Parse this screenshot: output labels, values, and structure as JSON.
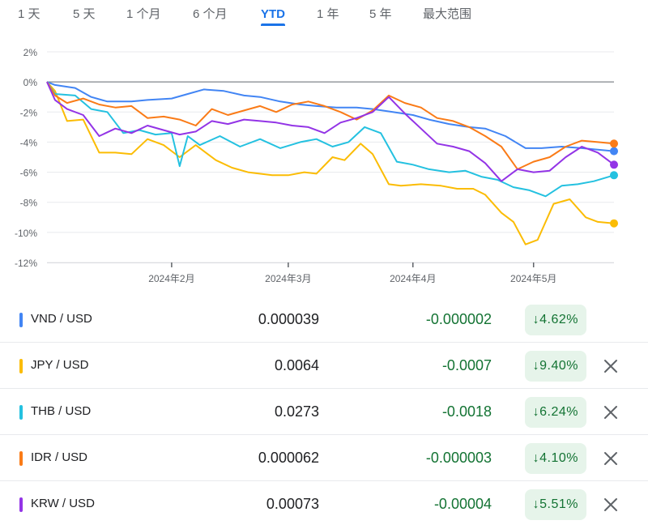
{
  "tabs": [
    {
      "label": "1 天"
    },
    {
      "label": "5 天"
    },
    {
      "label": "1 个月"
    },
    {
      "label": "6 个月"
    },
    {
      "label": "YTD",
      "active": true
    },
    {
      "label": "1 年"
    },
    {
      "label": "5 年"
    },
    {
      "label": "最大范围"
    }
  ],
  "chart_data": {
    "type": "line",
    "ylim": [
      -12,
      2
    ],
    "yticks": [
      2,
      0,
      -2,
      -4,
      -6,
      -8,
      -10,
      -12
    ],
    "ytick_labels": [
      "2%",
      "0%",
      "-2%",
      "-4%",
      "-6%",
      "-8%",
      "-10%",
      "-12%"
    ],
    "xlim": [
      "2024-01-01",
      "2024-05-21"
    ],
    "xticks": [
      "2024-02-01",
      "2024-03-01",
      "2024-04-01",
      "2024-05-01"
    ],
    "xtick_labels": [
      "2024年2月",
      "2024年3月",
      "2024年4月",
      "2024年5月"
    ],
    "baseline": 0,
    "grid": "horizontal",
    "series": [
      {
        "name": "VND / USD",
        "color": "#4285f4",
        "x": [
          "2024-01-01",
          "2024-01-03",
          "2024-01-08",
          "2024-01-12",
          "2024-01-16",
          "2024-01-22",
          "2024-01-26",
          "2024-02-01",
          "2024-02-05",
          "2024-02-09",
          "2024-02-14",
          "2024-02-19",
          "2024-02-23",
          "2024-02-28",
          "2024-03-04",
          "2024-03-08",
          "2024-03-13",
          "2024-03-18",
          "2024-03-22",
          "2024-03-27",
          "2024-04-01",
          "2024-04-05",
          "2024-04-10",
          "2024-04-15",
          "2024-04-19",
          "2024-04-24",
          "2024-04-29",
          "2024-05-03",
          "2024-05-08",
          "2024-05-13",
          "2024-05-17",
          "2024-05-21"
        ],
        "y": [
          0,
          -0.2,
          -0.4,
          -1.0,
          -1.3,
          -1.3,
          -1.2,
          -1.1,
          -0.8,
          -0.5,
          -0.6,
          -0.9,
          -1.0,
          -1.3,
          -1.5,
          -1.6,
          -1.7,
          -1.7,
          -1.8,
          -2.0,
          -2.2,
          -2.5,
          -2.8,
          -3.0,
          -3.1,
          -3.6,
          -4.4,
          -4.4,
          -4.3,
          -4.4,
          -4.5,
          -4.6
        ]
      },
      {
        "name": "JPY / USD",
        "color": "#fbbc04",
        "x": [
          "2024-01-01",
          "2024-01-03",
          "2024-01-06",
          "2024-01-10",
          "2024-01-14",
          "2024-01-18",
          "2024-01-22",
          "2024-01-26",
          "2024-01-30",
          "2024-02-03",
          "2024-02-07",
          "2024-02-12",
          "2024-02-16",
          "2024-02-20",
          "2024-02-26",
          "2024-03-01",
          "2024-03-05",
          "2024-03-08",
          "2024-03-12",
          "2024-03-15",
          "2024-03-19",
          "2024-03-22",
          "2024-03-26",
          "2024-03-29",
          "2024-04-03",
          "2024-04-08",
          "2024-04-12",
          "2024-04-16",
          "2024-04-19",
          "2024-04-23",
          "2024-04-26",
          "2024-04-29",
          "2024-05-02",
          "2024-05-06",
          "2024-05-10",
          "2024-05-14",
          "2024-05-17",
          "2024-05-21"
        ],
        "y": [
          0,
          -0.6,
          -2.6,
          -2.5,
          -4.7,
          -4.7,
          -4.8,
          -3.8,
          -4.2,
          -5.0,
          -4.2,
          -5.2,
          -5.7,
          -6.0,
          -6.2,
          -6.2,
          -6.0,
          -6.1,
          -5.0,
          -5.2,
          -4.1,
          -4.8,
          -6.8,
          -6.9,
          -6.8,
          -6.9,
          -7.1,
          -7.1,
          -7.5,
          -8.7,
          -9.3,
          -10.8,
          -10.5,
          -8.1,
          -7.8,
          -9.0,
          -9.3,
          -9.4
        ]
      },
      {
        "name": "THB / USD",
        "color": "#24c1e0",
        "x": [
          "2024-01-01",
          "2024-01-03",
          "2024-01-08",
          "2024-01-12",
          "2024-01-16",
          "2024-01-20",
          "2024-01-24",
          "2024-01-28",
          "2024-02-01",
          "2024-02-03",
          "2024-02-05",
          "2024-02-08",
          "2024-02-13",
          "2024-02-18",
          "2024-02-23",
          "2024-02-28",
          "2024-03-04",
          "2024-03-08",
          "2024-03-12",
          "2024-03-16",
          "2024-03-20",
          "2024-03-24",
          "2024-03-28",
          "2024-04-01",
          "2024-04-05",
          "2024-04-10",
          "2024-04-14",
          "2024-04-18",
          "2024-04-22",
          "2024-04-26",
          "2024-04-30",
          "2024-05-04",
          "2024-05-08",
          "2024-05-12",
          "2024-05-16",
          "2024-05-21"
        ],
        "y": [
          0,
          -0.8,
          -0.9,
          -1.8,
          -2.0,
          -3.4,
          -3.2,
          -3.5,
          -3.4,
          -5.6,
          -3.6,
          -4.2,
          -3.6,
          -4.3,
          -3.8,
          -4.4,
          -4.0,
          -3.8,
          -4.3,
          -4.0,
          -3.0,
          -3.4,
          -5.3,
          -5.5,
          -5.8,
          -6.0,
          -5.9,
          -6.3,
          -6.5,
          -7.0,
          -7.2,
          -7.6,
          -6.9,
          -6.8,
          -6.6,
          -6.2
        ]
      },
      {
        "name": "IDR / USD",
        "color": "#fa7b17",
        "x": [
          "2024-01-01",
          "2024-01-03",
          "2024-01-06",
          "2024-01-10",
          "2024-01-14",
          "2024-01-18",
          "2024-01-22",
          "2024-01-26",
          "2024-01-30",
          "2024-02-03",
          "2024-02-07",
          "2024-02-11",
          "2024-02-15",
          "2024-02-19",
          "2024-02-23",
          "2024-02-27",
          "2024-03-02",
          "2024-03-06",
          "2024-03-10",
          "2024-03-14",
          "2024-03-18",
          "2024-03-22",
          "2024-03-26",
          "2024-03-30",
          "2024-04-03",
          "2024-04-07",
          "2024-04-11",
          "2024-04-15",
          "2024-04-19",
          "2024-04-23",
          "2024-04-27",
          "2024-05-01",
          "2024-05-05",
          "2024-05-09",
          "2024-05-13",
          "2024-05-17",
          "2024-05-21"
        ],
        "y": [
          0,
          -0.9,
          -1.4,
          -1.1,
          -1.5,
          -1.7,
          -1.6,
          -2.4,
          -2.3,
          -2.5,
          -2.9,
          -1.8,
          -2.2,
          -1.9,
          -1.6,
          -2.0,
          -1.5,
          -1.3,
          -1.6,
          -2.0,
          -2.5,
          -1.9,
          -0.9,
          -1.4,
          -1.7,
          -2.4,
          -2.6,
          -3.0,
          -3.6,
          -4.3,
          -5.8,
          -5.3,
          -5.0,
          -4.3,
          -3.9,
          -4.0,
          -4.1
        ]
      },
      {
        "name": "KRW / USD",
        "color": "#9334e6",
        "x": [
          "2024-01-01",
          "2024-01-03",
          "2024-01-06",
          "2024-01-10",
          "2024-01-14",
          "2024-01-18",
          "2024-01-22",
          "2024-01-26",
          "2024-01-30",
          "2024-02-03",
          "2024-02-07",
          "2024-02-11",
          "2024-02-15",
          "2024-02-19",
          "2024-02-23",
          "2024-02-27",
          "2024-03-02",
          "2024-03-06",
          "2024-03-10",
          "2024-03-14",
          "2024-03-18",
          "2024-03-22",
          "2024-03-26",
          "2024-03-30",
          "2024-04-03",
          "2024-04-07",
          "2024-04-11",
          "2024-04-15",
          "2024-04-19",
          "2024-04-23",
          "2024-04-27",
          "2024-05-01",
          "2024-05-05",
          "2024-05-09",
          "2024-05-13",
          "2024-05-17",
          "2024-05-21"
        ],
        "y": [
          0,
          -1.2,
          -1.8,
          -2.2,
          -3.6,
          -3.1,
          -3.4,
          -2.9,
          -3.2,
          -3.5,
          -3.3,
          -2.6,
          -2.8,
          -2.5,
          -2.6,
          -2.7,
          -2.9,
          -3.0,
          -3.4,
          -2.7,
          -2.4,
          -2.0,
          -1.0,
          -2.1,
          -3.1,
          -4.1,
          -4.3,
          -4.6,
          -5.4,
          -6.6,
          -5.8,
          -6.0,
          -5.9,
          -5.0,
          -4.3,
          -4.7,
          -5.5
        ]
      }
    ]
  },
  "rows": [
    {
      "pair": "VND / USD",
      "price": "0.000039",
      "change": "-0.000002",
      "pct": "4.62%",
      "color": "#4285f4",
      "removable": false
    },
    {
      "pair": "JPY / USD",
      "price": "0.0064",
      "change": "-0.0007",
      "pct": "9.40%",
      "color": "#fbbc04",
      "removable": true
    },
    {
      "pair": "THB / USD",
      "price": "0.0273",
      "change": "-0.0018",
      "pct": "6.24%",
      "color": "#24c1e0",
      "removable": true
    },
    {
      "pair": "IDR / USD",
      "price": "0.000062",
      "change": "-0.000003",
      "pct": "4.10%",
      "color": "#fa7b17",
      "removable": true
    },
    {
      "pair": "KRW / USD",
      "price": "0.00073",
      "change": "-0.00004",
      "pct": "5.51%",
      "color": "#9334e6",
      "removable": true
    }
  ],
  "icons": {
    "down_arrow": "down-arrow-icon",
    "remove": "close-icon"
  }
}
